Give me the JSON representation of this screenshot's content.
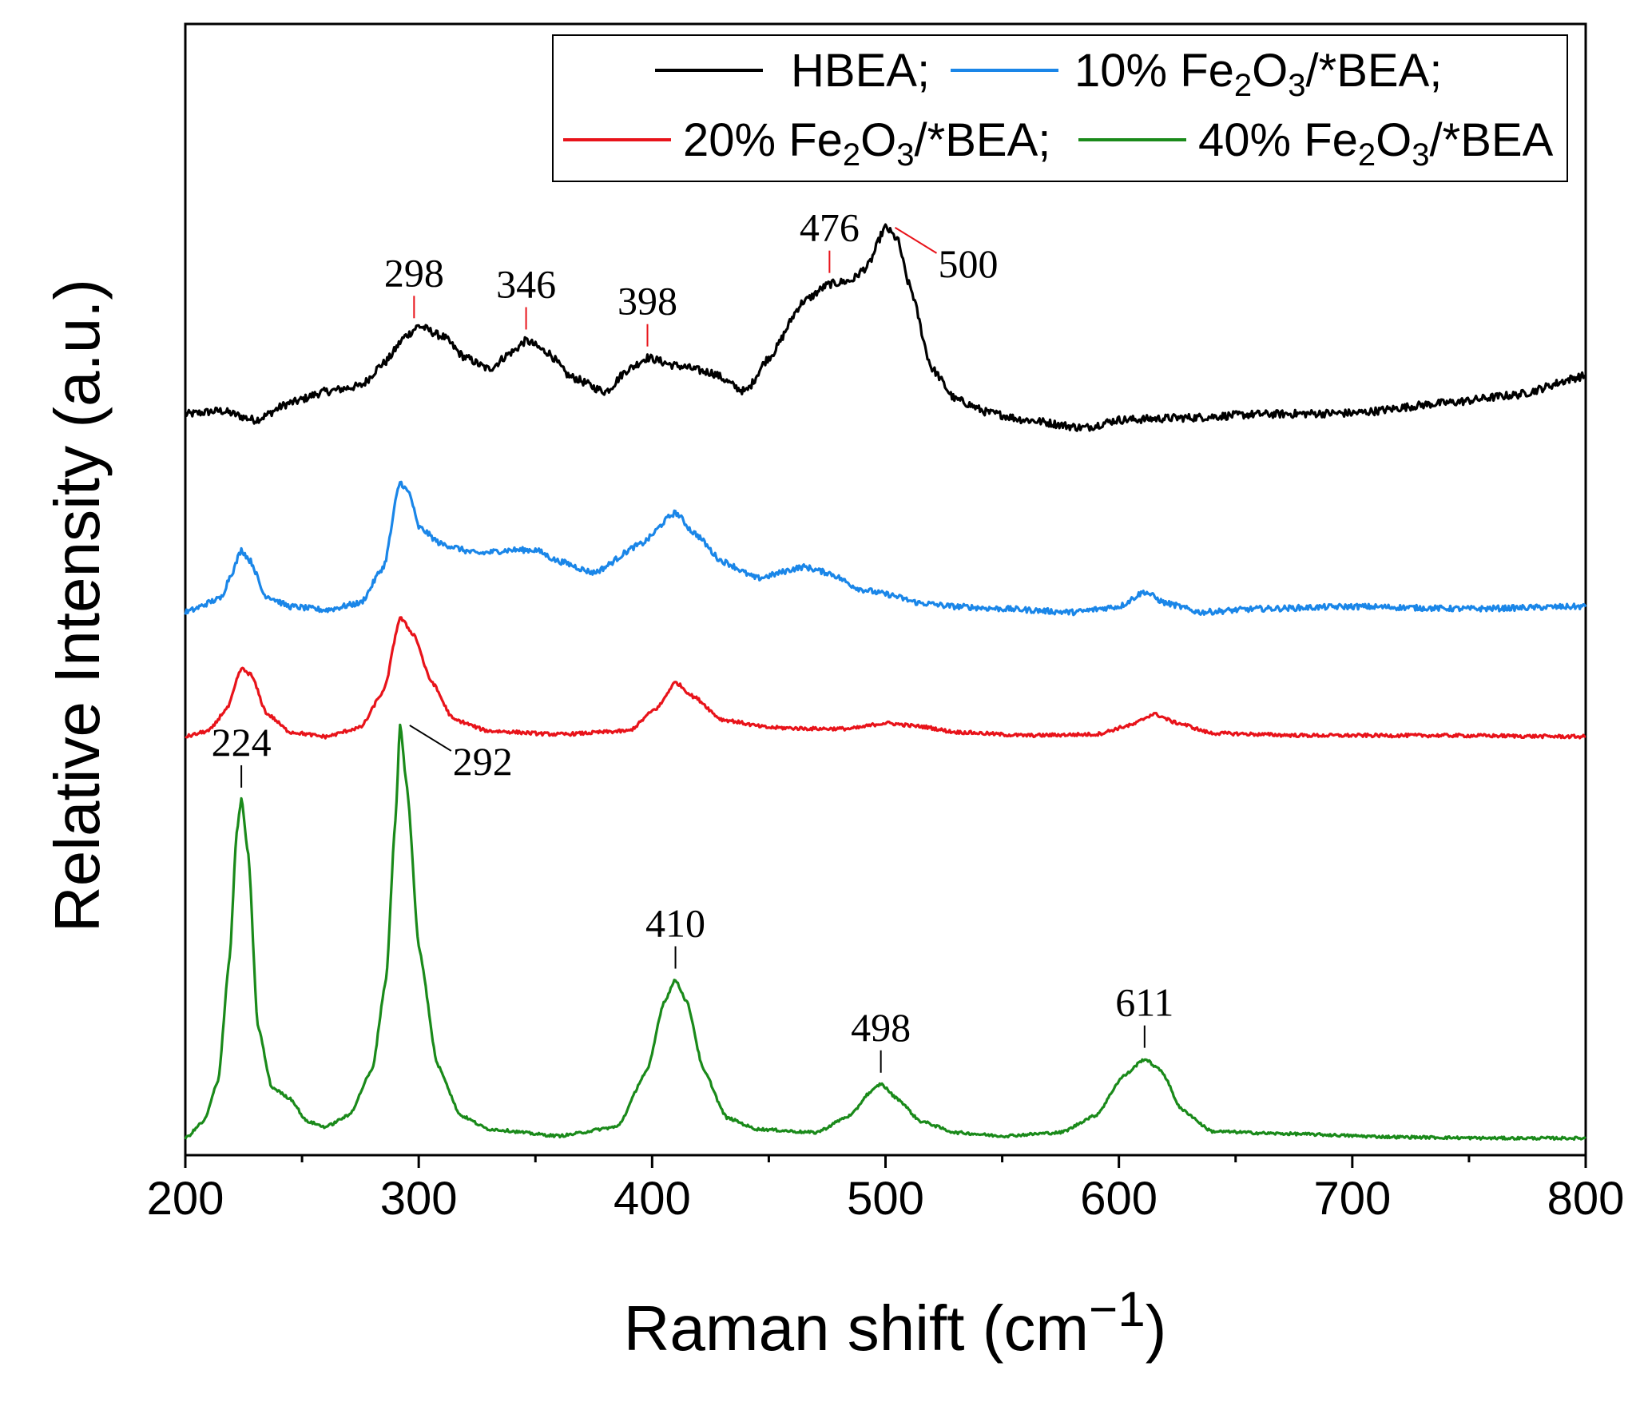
{
  "chart_data": {
    "type": "line",
    "title": "",
    "xlabel": "Raman shift (cm",
    "xlabel_sup": "−1",
    "xlabel_close": ")",
    "ylabel": "Relative Intensity (a.u.)",
    "xlim": [
      200,
      800
    ],
    "ylim": [
      0,
      100
    ],
    "xticks": [
      "200",
      "300",
      "400",
      "500",
      "600",
      "700",
      "800"
    ],
    "grid": false,
    "legend_position": "top-right",
    "legend": [
      {
        "text": "HBEA;",
        "sub_parts": null
      },
      {
        "pre": "10% Fe",
        "s1": "2",
        "mid": "O",
        "s2": "3",
        "post": "/*BEA;"
      },
      {
        "pre": "20% Fe",
        "s1": "2",
        "mid": "O",
        "s2": "3",
        "post": "/*BEA;"
      },
      {
        "pre": "40% Fe",
        "s1": "2",
        "mid": "O",
        "s2": "3",
        "post": "/*BEA"
      }
    ],
    "series": [
      {
        "name": "HBEA",
        "color": "#000000",
        "offset": 65,
        "points": [
          [
            200,
            0.5
          ],
          [
            215,
            0.8
          ],
          [
            230,
            0.0
          ],
          [
            245,
            1.5
          ],
          [
            260,
            2.5
          ],
          [
            275,
            3.0
          ],
          [
            285,
            5.0
          ],
          [
            295,
            7.5
          ],
          [
            300,
            8.3
          ],
          [
            310,
            7.4
          ],
          [
            320,
            5.5
          ],
          [
            330,
            4.5
          ],
          [
            340,
            6.0
          ],
          [
            346,
            7.0
          ],
          [
            355,
            6.0
          ],
          [
            365,
            3.8
          ],
          [
            380,
            2.5
          ],
          [
            390,
            4.5
          ],
          [
            398,
            5.5
          ],
          [
            410,
            4.8
          ],
          [
            425,
            4.2
          ],
          [
            440,
            2.5
          ],
          [
            450,
            5.5
          ],
          [
            465,
            10.5
          ],
          [
            476,
            12.0
          ],
          [
            485,
            12.3
          ],
          [
            492,
            13.5
          ],
          [
            500,
            17.0
          ],
          [
            505,
            16.0
          ],
          [
            510,
            12.0
          ],
          [
            520,
            4.5
          ],
          [
            530,
            1.8
          ],
          [
            545,
            0.6
          ],
          [
            560,
            0.0
          ],
          [
            585,
            -0.7
          ],
          [
            600,
            0.0
          ],
          [
            630,
            0.2
          ],
          [
            660,
            0.5
          ],
          [
            700,
            0.6
          ],
          [
            740,
            1.5
          ],
          [
            770,
            2.2
          ],
          [
            800,
            3.9
          ]
        ]
      },
      {
        "name": "10% Fe2O3/*BEA",
        "color": "#1a86e8",
        "offset": 48,
        "points": [
          [
            200,
            0.0
          ],
          [
            215,
            1.2
          ],
          [
            220,
            3.5
          ],
          [
            224,
            5.5
          ],
          [
            228,
            4.5
          ],
          [
            234,
            1.5
          ],
          [
            245,
            0.5
          ],
          [
            260,
            0.2
          ],
          [
            275,
            0.8
          ],
          [
            285,
            4.0
          ],
          [
            292,
            11.5
          ],
          [
            296,
            10.5
          ],
          [
            300,
            7.5
          ],
          [
            310,
            6.0
          ],
          [
            325,
            5.2
          ],
          [
            340,
            5.5
          ],
          [
            350,
            5.5
          ],
          [
            360,
            4.5
          ],
          [
            375,
            3.5
          ],
          [
            395,
            6.0
          ],
          [
            410,
            8.8
          ],
          [
            418,
            7.0
          ],
          [
            430,
            4.5
          ],
          [
            445,
            3.0
          ],
          [
            465,
            4.0
          ],
          [
            475,
            3.5
          ],
          [
            490,
            2.0
          ],
          [
            500,
            1.6
          ],
          [
            515,
            0.8
          ],
          [
            530,
            0.5
          ],
          [
            550,
            0.3
          ],
          [
            580,
            0.0
          ],
          [
            600,
            0.5
          ],
          [
            611,
            1.8
          ],
          [
            620,
            0.8
          ],
          [
            635,
            0.0
          ],
          [
            660,
            0.3
          ],
          [
            700,
            0.5
          ],
          [
            750,
            0.3
          ],
          [
            800,
            0.5
          ]
        ]
      },
      {
        "name": "20% Fe2O3/*BEA",
        "color": "#e8131a",
        "offset": 37,
        "points": [
          [
            200,
            0.0
          ],
          [
            210,
            0.5
          ],
          [
            218,
            2.5
          ],
          [
            224,
            6.0
          ],
          [
            228,
            5.5
          ],
          [
            235,
            2.0
          ],
          [
            245,
            0.4
          ],
          [
            260,
            0.0
          ],
          [
            275,
            0.8
          ],
          [
            285,
            4.0
          ],
          [
            292,
            10.5
          ],
          [
            298,
            9.0
          ],
          [
            305,
            5.0
          ],
          [
            315,
            1.5
          ],
          [
            330,
            0.5
          ],
          [
            360,
            0.2
          ],
          [
            390,
            0.5
          ],
          [
            402,
            2.5
          ],
          [
            410,
            4.8
          ],
          [
            418,
            3.5
          ],
          [
            430,
            1.5
          ],
          [
            450,
            0.8
          ],
          [
            470,
            0.7
          ],
          [
            485,
            0.7
          ],
          [
            500,
            1.2
          ],
          [
            515,
            0.9
          ],
          [
            530,
            0.4
          ],
          [
            560,
            0.1
          ],
          [
            590,
            0.2
          ],
          [
            605,
            1.0
          ],
          [
            615,
            2.0
          ],
          [
            625,
            1.2
          ],
          [
            640,
            0.3
          ],
          [
            680,
            0.1
          ],
          [
            740,
            0.1
          ],
          [
            800,
            0.0
          ]
        ]
      },
      {
        "name": "40% Fe2O3/*BEA",
        "color": "#1a8a1a",
        "offset": 1.5,
        "points": [
          [
            200,
            0.0
          ],
          [
            208,
            1.5
          ],
          [
            214,
            5.0
          ],
          [
            219,
            16.0
          ],
          [
            222,
            27.0
          ],
          [
            224,
            30.0
          ],
          [
            227,
            25.0
          ],
          [
            231,
            10.0
          ],
          [
            237,
            4.5
          ],
          [
            245,
            3.5
          ],
          [
            252,
            1.5
          ],
          [
            260,
            1.0
          ],
          [
            270,
            2.0
          ],
          [
            280,
            6.0
          ],
          [
            286,
            14.0
          ],
          [
            290,
            28.0
          ],
          [
            292,
            36.5
          ],
          [
            295,
            31.0
          ],
          [
            300,
            17.0
          ],
          [
            308,
            6.5
          ],
          [
            318,
            2.0
          ],
          [
            330,
            0.8
          ],
          [
            360,
            0.2
          ],
          [
            385,
            1.0
          ],
          [
            398,
            6.0
          ],
          [
            405,
            12.0
          ],
          [
            410,
            14.0
          ],
          [
            415,
            12.0
          ],
          [
            422,
            6.0
          ],
          [
            432,
            1.8
          ],
          [
            445,
            0.8
          ],
          [
            470,
            0.5
          ],
          [
            485,
            2.0
          ],
          [
            493,
            4.0
          ],
          [
            498,
            4.8
          ],
          [
            505,
            3.5
          ],
          [
            515,
            1.5
          ],
          [
            530,
            0.5
          ],
          [
            550,
            0.2
          ],
          [
            575,
            0.5
          ],
          [
            590,
            2.0
          ],
          [
            602,
            5.5
          ],
          [
            611,
            7.0
          ],
          [
            618,
            6.0
          ],
          [
            627,
            2.5
          ],
          [
            640,
            0.6
          ],
          [
            670,
            0.4
          ],
          [
            720,
            0.1
          ],
          [
            760,
            0.0
          ],
          [
            800,
            0.0
          ]
        ]
      }
    ],
    "annotations": [
      {
        "text": "298",
        "x": 298,
        "series": 0,
        "color": "#e8131a",
        "style": "top"
      },
      {
        "text": "346",
        "x": 346,
        "series": 0,
        "color": "#e8131a",
        "style": "top"
      },
      {
        "text": "398",
        "x": 398,
        "series": 0,
        "color": "#e8131a",
        "style": "top"
      },
      {
        "text": "476",
        "x": 476,
        "series": 0,
        "color": "#e8131a",
        "style": "top"
      },
      {
        "text": "500",
        "x": 500,
        "series": 0,
        "color": "#e8131a",
        "style": "side"
      },
      {
        "text": "224",
        "x": 224,
        "series": 3,
        "color": "#000000",
        "style": "top"
      },
      {
        "text": "292",
        "x": 292,
        "series": 3,
        "color": "#000000",
        "style": "side"
      },
      {
        "text": "410",
        "x": 410,
        "series": 3,
        "color": "#000000",
        "style": "top"
      },
      {
        "text": "498",
        "x": 498,
        "series": 3,
        "color": "#000000",
        "style": "top"
      },
      {
        "text": "611",
        "x": 611,
        "series": 3,
        "color": "#000000",
        "style": "top"
      }
    ]
  }
}
